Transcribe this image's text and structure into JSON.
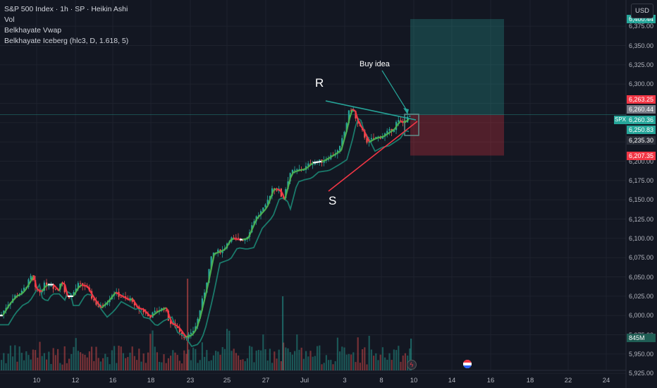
{
  "legend": {
    "title": "S&P 500 Index · 1h · SP · Heikin Ashi",
    "line2": "Vol",
    "line3": "Belkhayate Vwap",
    "line4": "Belkhayate Iceberg (hlc3, D, 1.618, 5)"
  },
  "currency_button": "USD",
  "y_axis_labels": [
    "6,375.00",
    "6,350.00",
    "6,325.00",
    "6,300.00",
    "6,200.00",
    "6,175.00",
    "6,150.00",
    "6,125.00",
    "6,100.00",
    "6,075.00",
    "6,050.00",
    "6,025.00",
    "6,000.00",
    "5,975.00",
    "5,950.00",
    "5,925.00"
  ],
  "price_tags": [
    {
      "text": "6,400.44",
      "color": "#26a69a"
    },
    {
      "text": "6,263.25",
      "color": "#f23645"
    },
    {
      "text": "6,260.44",
      "color": "#787b86"
    },
    {
      "text": "6,260.36",
      "color": "#26a69a"
    },
    {
      "text": "6,250.83",
      "color": "#26a69a"
    },
    {
      "text": "6,235.30",
      "color": "#2a2e39"
    },
    {
      "text": "6,207.35",
      "color": "#f23645"
    },
    {
      "text": "845M",
      "color": "#1f5d54"
    }
  ],
  "symbol_tag": "SPX",
  "x_axis_labels": [
    "10",
    "12",
    "16",
    "18",
    "23",
    "25",
    "27",
    "Jul",
    "3",
    "8",
    "10",
    "14",
    "16",
    "18",
    "22",
    "24"
  ],
  "annotations": {
    "resistance": "R",
    "support": "S",
    "buy_idea": "Buy idea"
  },
  "icons": [
    "flash-icon",
    "flag-icon"
  ],
  "chart_data": {
    "type": "candlestick",
    "ylim": [
      5906,
      6409
    ],
    "ticks": [
      5925,
      5950,
      5975,
      6000,
      6025,
      6050,
      6075,
      6100,
      6125,
      6150,
      6175,
      6200,
      6225,
      6250,
      6275,
      6300,
      6325,
      6350,
      6375
    ],
    "anchors": [
      [
        0,
        6000
      ],
      [
        10,
        6015
      ],
      [
        20,
        6025
      ],
      [
        30,
        6030
      ],
      [
        40,
        6045
      ],
      [
        44,
        6052
      ],
      [
        48,
        6035
      ],
      [
        55,
        6030
      ],
      [
        62,
        6040
      ],
      [
        72,
        6040
      ],
      [
        80,
        6032
      ],
      [
        86,
        6048
      ],
      [
        92,
        6025
      ],
      [
        100,
        6025
      ],
      [
        110,
        6040
      ],
      [
        120,
        6038
      ],
      [
        130,
        6022
      ],
      [
        140,
        6010
      ],
      [
        150,
        6018
      ],
      [
        160,
        6030
      ],
      [
        170,
        6025
      ],
      [
        180,
        6020
      ],
      [
        186,
        6022
      ],
      [
        190,
        6010
      ],
      [
        200,
        6008
      ],
      [
        210,
        5998
      ],
      [
        220,
        6005
      ],
      [
        232,
        6010
      ],
      [
        240,
        5990
      ],
      [
        250,
        5985
      ],
      [
        260,
        5972
      ],
      [
        270,
        5975
      ],
      [
        278,
        5990
      ],
      [
        290,
        6035
      ],
      [
        300,
        6080
      ],
      [
        315,
        6085
      ],
      [
        325,
        6100
      ],
      [
        338,
        6098
      ],
      [
        348,
        6100
      ],
      [
        360,
        6125
      ],
      [
        375,
        6140
      ],
      [
        385,
        6165
      ],
      [
        395,
        6162
      ],
      [
        400,
        6150
      ],
      [
        410,
        6185
      ],
      [
        420,
        6188
      ],
      [
        430,
        6190
      ],
      [
        440,
        6198
      ],
      [
        455,
        6200
      ],
      [
        470,
        6208
      ],
      [
        480,
        6214
      ],
      [
        488,
        6240
      ],
      [
        495,
        6268
      ],
      [
        500,
        6265
      ],
      [
        505,
        6250
      ],
      [
        512,
        6240
      ],
      [
        520,
        6225
      ],
      [
        530,
        6230
      ],
      [
        540,
        6232
      ],
      [
        550,
        6238
      ],
      [
        558,
        6243
      ],
      [
        562,
        6252
      ],
      [
        570,
        6250
      ],
      [
        578,
        6256
      ],
      [
        582,
        6260
      ]
    ],
    "volume": {
      "peak_label": "845M"
    },
    "levels": {
      "stop": 6207.35,
      "entry": 6260.36,
      "target": 6400.44
    }
  }
}
